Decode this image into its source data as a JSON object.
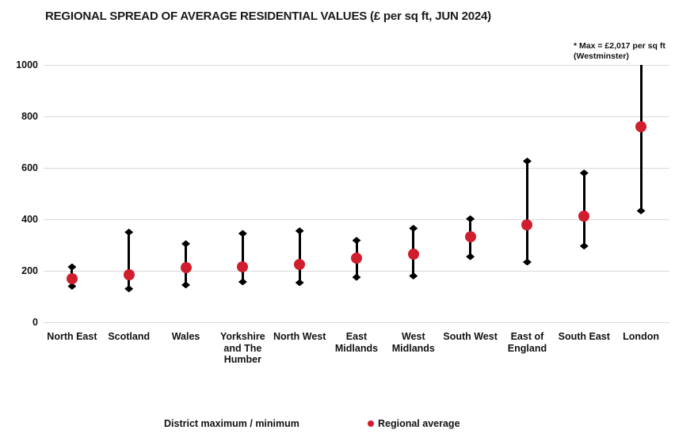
{
  "title": "REGIONAL SPREAD OF AVERAGE RESIDENTIAL VALUES (£ per sq ft, JUN 2024)",
  "annotation": {
    "line1": "* Max = £2,017 per sq ft",
    "line2": "(Westminster)"
  },
  "legend": {
    "range_label": "District maximum / minimum",
    "average_label": "Regional average"
  },
  "colors": {
    "average_dot": "#d01e2e",
    "range_line": "#000000",
    "gridline": "#d9d9d9",
    "text": "#111111"
  },
  "chart_data": {
    "type": "range-dot",
    "title": "REGIONAL SPREAD OF AVERAGE RESIDENTIAL VALUES (£ per sq ft, JUN 2024)",
    "xlabel": "",
    "ylabel": "£ per sq ft",
    "ylim": [
      0,
      1000
    ],
    "yticks": [
      0,
      200,
      400,
      600,
      800,
      1000
    ],
    "grid": "horizontal",
    "legend_position": "bottom",
    "annotation": "* Max = £2,017 per sq ft (Westminster)",
    "categories": [
      "North East",
      "Scotland",
      "Wales",
      "Yorkshire and The Humber",
      "North West",
      "East Midlands",
      "West Midlands",
      "South West",
      "East of England",
      "South East",
      "London"
    ],
    "series": [
      {
        "name": "District maximum",
        "values": [
          215,
          350,
          305,
          345,
          355,
          318,
          365,
          402,
          626,
          580,
          2017
        ]
      },
      {
        "name": "District minimum",
        "values": [
          140,
          130,
          145,
          157,
          154,
          175,
          180,
          255,
          234,
          296,
          433
        ]
      },
      {
        "name": "Regional average",
        "values": [
          170,
          185,
          213,
          214,
          224,
          250,
          264,
          331,
          378,
          413,
          760
        ]
      }
    ],
    "regions": [
      {
        "name": "North East",
        "label_lines": [
          "North East"
        ],
        "min": 140,
        "avg": 170,
        "max": 215
      },
      {
        "name": "Scotland",
        "label_lines": [
          "Scotland"
        ],
        "min": 130,
        "avg": 185,
        "max": 350
      },
      {
        "name": "Wales",
        "label_lines": [
          "Wales"
        ],
        "min": 145,
        "avg": 213,
        "max": 305
      },
      {
        "name": "Yorkshire and The Humber",
        "label_lines": [
          "Yorkshire",
          "and The",
          "Humber"
        ],
        "min": 157,
        "avg": 214,
        "max": 345
      },
      {
        "name": "North West",
        "label_lines": [
          "North West"
        ],
        "min": 154,
        "avg": 224,
        "max": 355
      },
      {
        "name": "East Midlands",
        "label_lines": [
          "East",
          "Midlands"
        ],
        "min": 175,
        "avg": 250,
        "max": 318
      },
      {
        "name": "West Midlands",
        "label_lines": [
          "West",
          "Midlands"
        ],
        "min": 180,
        "avg": 264,
        "max": 365
      },
      {
        "name": "South West",
        "label_lines": [
          "South West"
        ],
        "min": 255,
        "avg": 331,
        "max": 402
      },
      {
        "name": "East of England",
        "label_lines": [
          "East of",
          "England"
        ],
        "min": 234,
        "avg": 378,
        "max": 626
      },
      {
        "name": "South East",
        "label_lines": [
          "South East"
        ],
        "min": 296,
        "avg": 413,
        "max": 580
      },
      {
        "name": "London",
        "label_lines": [
          "London"
        ],
        "min": 433,
        "avg": 760,
        "max": 2017,
        "max_clipped_at": 1000
      }
    ]
  }
}
